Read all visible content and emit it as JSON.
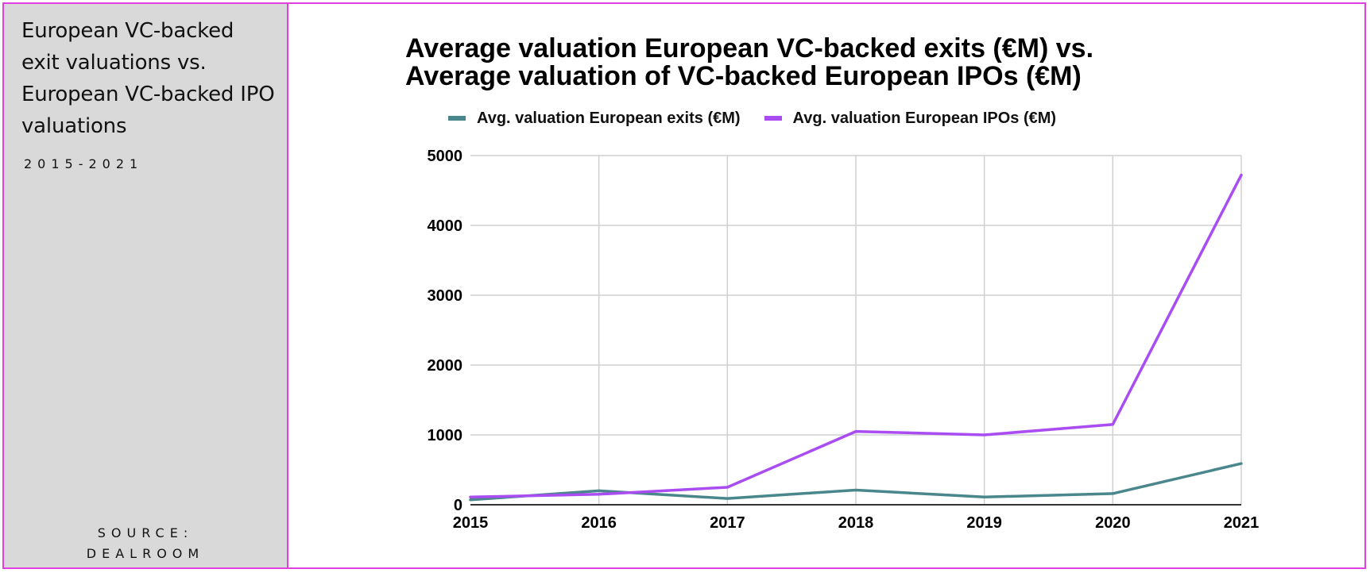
{
  "sidebar": {
    "title": "European VC-backed exit valuations vs. European VC-backed IPO valuations",
    "period": "2015-2021",
    "source_line1": "SOURCE:",
    "source_line2": "DEALROOM"
  },
  "colors": {
    "frame": "#e23fe0",
    "sidebar_bg": "#d9d9d9",
    "exits_line": "#4a878c",
    "ipos_line": "#a94df2"
  },
  "chart_data": {
    "type": "line",
    "title_line1": "Average valuation European VC-backed exits (€M) vs.",
    "title_line2": "Average valuation of VC-backed European IPOs (€M)",
    "x": [
      "2015",
      "2016",
      "2017",
      "2018",
      "2019",
      "2020",
      "2021"
    ],
    "ylim": [
      0,
      5000
    ],
    "yticks": [
      0,
      1000,
      2000,
      3000,
      4000,
      5000
    ],
    "grid": true,
    "legend_position": "top",
    "series": [
      {
        "name": "Avg. valuation European exits (€M)",
        "color": "#4a878c",
        "values": [
          70,
          200,
          90,
          210,
          110,
          160,
          590
        ]
      },
      {
        "name": "Avg. valuation European IPOs (€M)",
        "color": "#a94df2",
        "values": [
          110,
          150,
          250,
          1050,
          1000,
          1150,
          4720
        ]
      }
    ]
  }
}
